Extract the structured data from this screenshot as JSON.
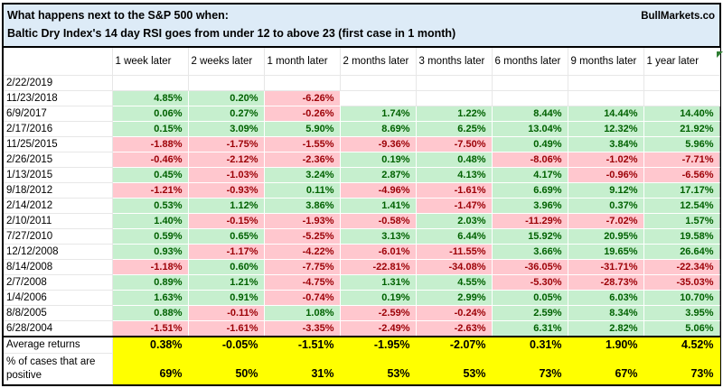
{
  "title": {
    "line1": "What happens next to the S&P 500 when:",
    "line2": "Baltic Dry Index's 14 day RSI goes from under 12 to above 23 (first case in 1 month)",
    "brand": "BullMarkets.co"
  },
  "chart_data": {
    "type": "table",
    "title": "What happens next to the S&P 500 when: Baltic Dry Index's 14 day RSI goes from under 12 to above 23 (first case in 1 month)",
    "row_header": "date",
    "columns": [
      "1 week later",
      "2 weeks later",
      "1 month later",
      "2 months later",
      "3 months later",
      "6 months later",
      "9 months later",
      "1 year later"
    ],
    "rows": [
      {
        "date": "2/22/2019",
        "values": [
          "",
          "",
          "",
          "",
          "",
          "",
          "",
          ""
        ]
      },
      {
        "date": "11/23/2018",
        "values": [
          "4.85%",
          "0.20%",
          "-6.26%",
          "",
          "",
          "",
          "",
          ""
        ]
      },
      {
        "date": "6/9/2017",
        "values": [
          "0.06%",
          "0.27%",
          "-0.26%",
          "1.74%",
          "1.22%",
          "8.44%",
          "14.44%",
          "14.40%"
        ]
      },
      {
        "date": "2/17/2016",
        "values": [
          "0.15%",
          "3.09%",
          "5.90%",
          "8.69%",
          "6.25%",
          "13.04%",
          "12.32%",
          "21.92%"
        ]
      },
      {
        "date": "11/25/2015",
        "values": [
          "-1.88%",
          "-1.75%",
          "-1.55%",
          "-9.36%",
          "-7.50%",
          "0.49%",
          "3.84%",
          "5.96%"
        ]
      },
      {
        "date": "2/26/2015",
        "values": [
          "-0.46%",
          "-2.12%",
          "-2.36%",
          "0.19%",
          "0.48%",
          "-8.06%",
          "-1.02%",
          "-7.71%"
        ]
      },
      {
        "date": "1/13/2015",
        "values": [
          "0.45%",
          "-1.03%",
          "3.24%",
          "2.87%",
          "4.13%",
          "4.17%",
          "-0.96%",
          "-6.56%"
        ]
      },
      {
        "date": "9/18/2012",
        "values": [
          "-1.21%",
          "-0.93%",
          "0.11%",
          "-4.96%",
          "-1.61%",
          "6.69%",
          "9.12%",
          "17.17%"
        ]
      },
      {
        "date": "2/14/2012",
        "values": [
          "0.53%",
          "1.12%",
          "3.86%",
          "1.41%",
          "-1.47%",
          "3.96%",
          "0.37%",
          "12.54%"
        ]
      },
      {
        "date": "2/10/2011",
        "values": [
          "1.40%",
          "-0.15%",
          "-1.93%",
          "-0.58%",
          "2.03%",
          "-11.29%",
          "-7.02%",
          "1.57%"
        ]
      },
      {
        "date": "7/27/2010",
        "values": [
          "0.59%",
          "0.65%",
          "-5.25%",
          "3.13%",
          "6.44%",
          "15.92%",
          "20.95%",
          "19.58%"
        ]
      },
      {
        "date": "12/12/2008",
        "values": [
          "0.93%",
          "-1.17%",
          "-4.22%",
          "-6.01%",
          "-11.55%",
          "3.66%",
          "19.65%",
          "26.64%"
        ]
      },
      {
        "date": "8/14/2008",
        "values": [
          "-1.18%",
          "0.60%",
          "-7.75%",
          "-22.81%",
          "-34.08%",
          "-36.05%",
          "-31.71%",
          "-22.34%"
        ]
      },
      {
        "date": "2/7/2008",
        "values": [
          "0.89%",
          "1.21%",
          "-4.75%",
          "1.31%",
          "4.55%",
          "-5.30%",
          "-28.73%",
          "-35.03%"
        ]
      },
      {
        "date": "1/4/2006",
        "values": [
          "1.63%",
          "0.91%",
          "-0.74%",
          "0.19%",
          "2.99%",
          "0.05%",
          "6.03%",
          "10.70%"
        ]
      },
      {
        "date": "8/8/2005",
        "values": [
          "0.88%",
          "-0.11%",
          "1.08%",
          "-2.59%",
          "-0.24%",
          "2.59%",
          "8.34%",
          "3.95%"
        ]
      },
      {
        "date": "6/28/2004",
        "values": [
          "-1.51%",
          "-1.61%",
          "-3.35%",
          "-2.49%",
          "-2.63%",
          "6.31%",
          "2.82%",
          "5.06%"
        ]
      }
    ],
    "summary": [
      {
        "label": "Average returns",
        "values": [
          "0.38%",
          "-0.05%",
          "-1.51%",
          "-1.95%",
          "-2.07%",
          "0.31%",
          "1.90%",
          "4.52%"
        ]
      },
      {
        "label": "% of cases that are positive",
        "values": [
          "69%",
          "50%",
          "31%",
          "53%",
          "53%",
          "73%",
          "67%",
          "73%"
        ]
      }
    ]
  },
  "colors": {
    "positive_bg": "#C6EFCE",
    "positive_text": "#006100",
    "negative_bg": "#FFC7CE",
    "negative_text": "#9C0006",
    "summary_bg": "#FFFF00",
    "title_bg": "#DDEBF7",
    "border": "#000000"
  }
}
